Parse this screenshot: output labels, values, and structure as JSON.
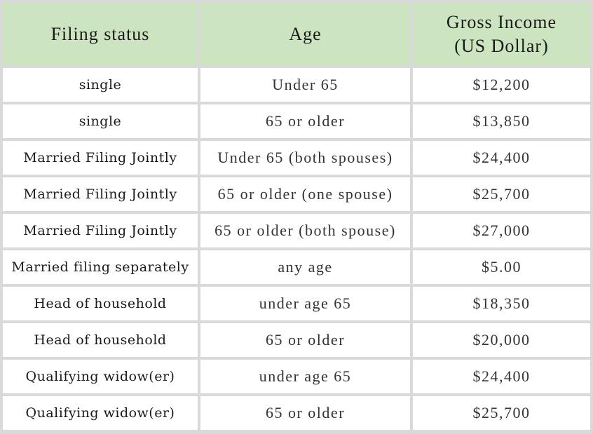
{
  "table": {
    "headers": [
      "Filing status",
      "Age",
      "Gross Income\n(US Dollar)"
    ],
    "rows": [
      [
        "single",
        "Under 65",
        "$12,200"
      ],
      [
        "single",
        "65 or older",
        "$13,850"
      ],
      [
        "Married Filing Jointly",
        "Under 65 (both spouses)",
        "$24,400"
      ],
      [
        "Married Filing Jointly",
        "65 or older (one spouse)",
        "$25,700"
      ],
      [
        "Married Filing Jointly",
        "65 or older (both spouse)",
        "$27,000"
      ],
      [
        "Married filing separately",
        "any age",
        "$5.00"
      ],
      [
        "Head of household",
        "under age 65",
        "$18,350"
      ],
      [
        "Head of household",
        "65 or older",
        "$20,000"
      ],
      [
        "Qualifying widow(er)",
        "under age 65",
        "$24,400"
      ],
      [
        "Qualifying widow(er)",
        "65 or older",
        "$25,700"
      ]
    ]
  },
  "colors": {
    "header_bg": "#cde4c0",
    "grid_lines": "#d9d9d9",
    "cell_bg": "#ffffff"
  }
}
